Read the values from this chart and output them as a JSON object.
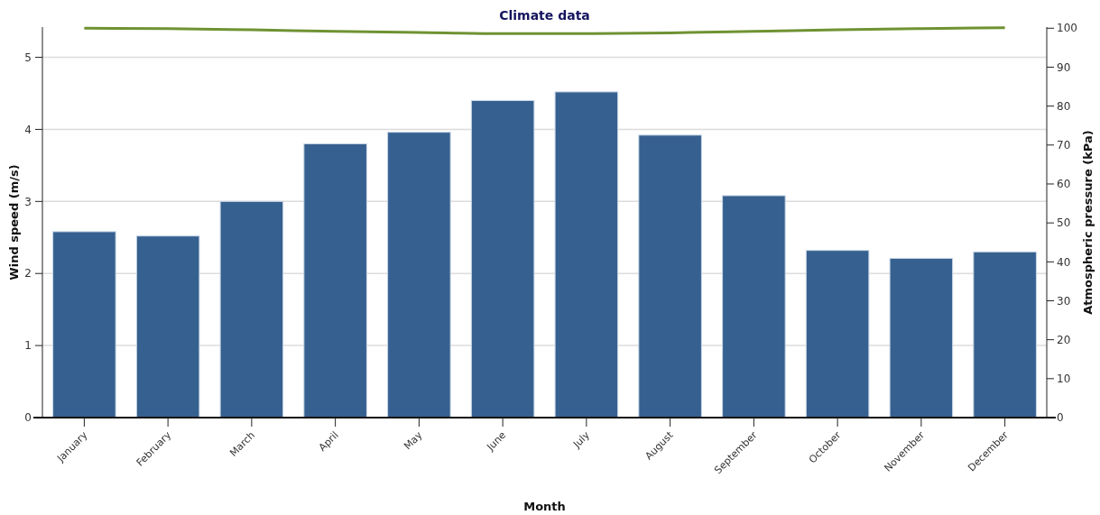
{
  "chart_data": {
    "type": "bar",
    "title": "Climate data",
    "xlabel": "Month",
    "ylabel": "Wind speed (m/s)",
    "y2label": "Atmospheric pressure (kPa)",
    "categories": [
      "January",
      "February",
      "March",
      "April",
      "May",
      "June",
      "July",
      "August",
      "September",
      "October",
      "November",
      "December"
    ],
    "series": [
      {
        "color": "#36608f",
        "values": [
          2.58,
          2.52,
          3.0,
          3.8,
          3.96,
          4.4,
          4.52,
          3.92,
          3.08,
          2.32,
          2.21,
          2.3
        ]
      },
      {
        "type": "line",
        "axis": "y2",
        "color": "#6f9232",
        "values": [
          100,
          99.9,
          99.6,
          99.2,
          98.9,
          98.6,
          98.6,
          98.8,
          99.2,
          99.6,
          99.9,
          100.1
        ]
      }
    ],
    "ylim": [
      0,
      5.42
    ],
    "yticks": [
      0,
      1,
      2,
      3,
      4,
      5
    ],
    "y2lim": [
      0,
      100.3
    ],
    "y2ticks": [
      0,
      10,
      20,
      30,
      40,
      50,
      60,
      70,
      80,
      90,
      100
    ],
    "grid": "y",
    "marker": "none",
    "line_style": "solid"
  }
}
